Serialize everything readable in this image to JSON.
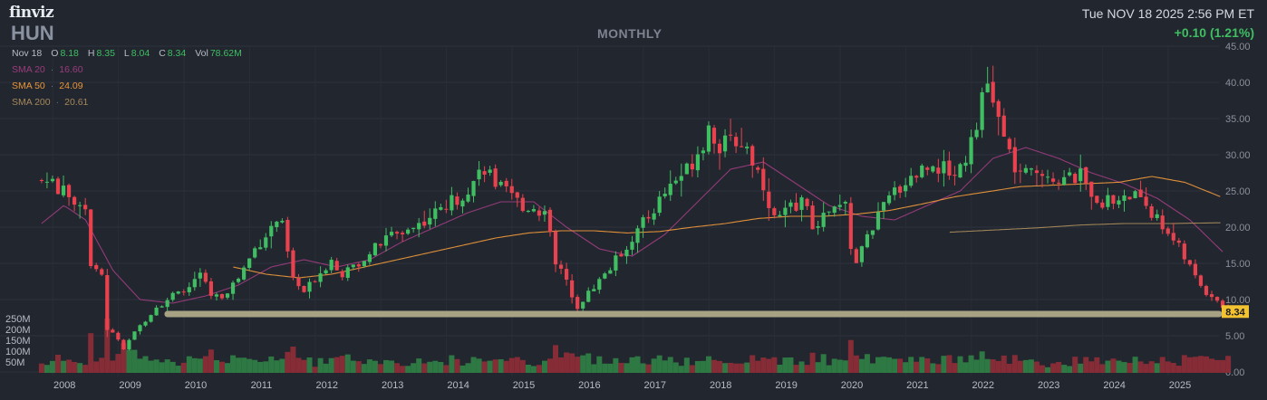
{
  "header": {
    "logo": "finviz",
    "ticker": "HUN",
    "timeframe": "MONTHLY",
    "datetime": "Tue NOV 18 2025 2:56 PM ET",
    "change": "+0.10 (1.21%)"
  },
  "ohlc": {
    "date": "Nov 18",
    "o_label": "O",
    "o": "8.18",
    "h_label": "H",
    "h": "8.35",
    "l_label": "L",
    "l": "8.04",
    "c_label": "C",
    "c": "8.34",
    "vol_label": "Vol",
    "vol": "78.62M"
  },
  "sma": [
    {
      "label": "SMA 20",
      "value": "16.60",
      "color": "#9a3c7d"
    },
    {
      "label": "SMA 50",
      "value": "24.09",
      "color": "#e8953a"
    },
    {
      "label": "SMA 200",
      "value": "20.61",
      "color": "#a4885a"
    }
  ],
  "colors": {
    "up": "#3fbf62",
    "down": "#e8424e",
    "support_line": "#b6b08e",
    "price_tag": "#f2c230"
  },
  "chart_data": {
    "type": "candlestick",
    "interval": "monthly",
    "y_ticks": [
      "45.00",
      "40.00",
      "35.00",
      "30.00",
      "25.00",
      "20.00",
      "15.00",
      "10.00",
      "5.00",
      "0.00"
    ],
    "y_range": [
      0,
      45
    ],
    "x_labels": [
      "2008",
      "2009",
      "2010",
      "2011",
      "2012",
      "2013",
      "2014",
      "2015",
      "2016",
      "2017",
      "2018",
      "2019",
      "2020",
      "2021",
      "2022",
      "2023",
      "2024",
      "2025"
    ],
    "volume_ticks": [
      "250M",
      "200M",
      "150M",
      "100M",
      "50M"
    ],
    "last_price": "8.34",
    "support_level": 8.0,
    "anchors": [
      [
        2007.83,
        26.5
      ],
      [
        2008.0,
        26.0
      ],
      [
        2008.25,
        24.0
      ],
      [
        2008.5,
        23.0
      ],
      [
        2008.58,
        15.0
      ],
      [
        2008.75,
        13.0
      ],
      [
        2008.83,
        6.0
      ],
      [
        2009.0,
        4.5
      ],
      [
        2009.08,
        3.0
      ],
      [
        2009.25,
        5.5
      ],
      [
        2009.58,
        9.0
      ],
      [
        2009.83,
        10.5
      ],
      [
        2010.0,
        11.0
      ],
      [
        2010.25,
        13.5
      ],
      [
        2010.42,
        10.5
      ],
      [
        2010.58,
        10.5
      ],
      [
        2010.83,
        13.0
      ],
      [
        2011.08,
        17.0
      ],
      [
        2011.25,
        19.0
      ],
      [
        2011.42,
        21.0
      ],
      [
        2011.5,
        20.0
      ],
      [
        2011.67,
        12.5
      ],
      [
        2011.83,
        11.0
      ],
      [
        2012.0,
        13.0
      ],
      [
        2012.25,
        15.5
      ],
      [
        2012.42,
        13.5
      ],
      [
        2012.58,
        14.5
      ],
      [
        2012.83,
        16.5
      ],
      [
        2013.17,
        19.0
      ],
      [
        2013.5,
        20.0
      ],
      [
        2013.83,
        22.0
      ],
      [
        2014.17,
        24.0
      ],
      [
        2014.42,
        26.5
      ],
      [
        2014.58,
        28.5
      ],
      [
        2014.75,
        26.0
      ],
      [
        2014.92,
        24.5
      ],
      [
        2015.17,
        23.0
      ],
      [
        2015.5,
        22.0
      ],
      [
        2015.58,
        20.0
      ],
      [
        2015.67,
        15.0
      ],
      [
        2015.83,
        12.5
      ],
      [
        2016.0,
        9.0
      ],
      [
        2016.17,
        11.0
      ],
      [
        2016.5,
        14.5
      ],
      [
        2016.83,
        18.5
      ],
      [
        2017.08,
        21.5
      ],
      [
        2017.42,
        26.0
      ],
      [
        2017.67,
        28.0
      ],
      [
        2017.92,
        32.0
      ],
      [
        2018.0,
        34.0
      ],
      [
        2018.17,
        31.0
      ],
      [
        2018.42,
        32.0
      ],
      [
        2018.58,
        31.0
      ],
      [
        2018.83,
        26.0
      ],
      [
        2019.0,
        21.0
      ],
      [
        2019.17,
        22.0
      ],
      [
        2019.42,
        24.0
      ],
      [
        2019.58,
        20.0
      ],
      [
        2019.83,
        22.0
      ],
      [
        2020.08,
        23.0
      ],
      [
        2020.17,
        17.0
      ],
      [
        2020.25,
        15.0
      ],
      [
        2020.42,
        19.0
      ],
      [
        2020.58,
        21.5
      ],
      [
        2020.83,
        25.0
      ],
      [
        2021.08,
        27.0
      ],
      [
        2021.42,
        29.0
      ],
      [
        2021.58,
        28.0
      ],
      [
        2021.75,
        27.5
      ],
      [
        2021.92,
        30.0
      ],
      [
        2022.08,
        35.0
      ],
      [
        2022.25,
        39.5
      ],
      [
        2022.33,
        37.5
      ],
      [
        2022.5,
        32.0
      ],
      [
        2022.67,
        28.0
      ],
      [
        2022.83,
        27.0
      ],
      [
        2023.08,
        28.0
      ],
      [
        2023.25,
        27.0
      ],
      [
        2023.42,
        26.5
      ],
      [
        2023.67,
        27.0
      ],
      [
        2023.92,
        24.0
      ],
      [
        2024.08,
        23.5
      ],
      [
        2024.33,
        24.0
      ],
      [
        2024.58,
        24.5
      ],
      [
        2024.83,
        21.0
      ],
      [
        2025.0,
        19.5
      ],
      [
        2025.17,
        17.0
      ],
      [
        2025.42,
        13.0
      ],
      [
        2025.58,
        11.0
      ],
      [
        2025.75,
        10.0
      ],
      [
        2025.88,
        8.3
      ]
    ],
    "sma20_anchors": [
      [
        2007.83,
        20.5
      ],
      [
        2008.17,
        23.0
      ],
      [
        2008.5,
        21.0
      ],
      [
        2008.92,
        14.0
      ],
      [
        2009.33,
        10.0
      ],
      [
        2009.83,
        9.5
      ],
      [
        2010.33,
        10.5
      ],
      [
        2010.83,
        12.0
      ],
      [
        2011.33,
        14.5
      ],
      [
        2011.83,
        15.5
      ],
      [
        2012.33,
        14.5
      ],
      [
        2012.83,
        15.5
      ],
      [
        2013.33,
        18.0
      ],
      [
        2013.83,
        20.0
      ],
      [
        2014.33,
        22.0
      ],
      [
        2014.83,
        23.5
      ],
      [
        2015.33,
        23.5
      ],
      [
        2015.83,
        20.0
      ],
      [
        2016.33,
        17.0
      ],
      [
        2016.83,
        16.0
      ],
      [
        2017.33,
        19.0
      ],
      [
        2017.83,
        23.5
      ],
      [
        2018.33,
        28.0
      ],
      [
        2018.83,
        29.0
      ],
      [
        2019.33,
        26.0
      ],
      [
        2019.83,
        23.0
      ],
      [
        2020.33,
        21.5
      ],
      [
        2020.83,
        21.0
      ],
      [
        2021.33,
        23.0
      ],
      [
        2021.83,
        25.0
      ],
      [
        2022.33,
        29.5
      ],
      [
        2022.83,
        31.0
      ],
      [
        2023.33,
        29.5
      ],
      [
        2023.83,
        27.5
      ],
      [
        2024.33,
        26.0
      ],
      [
        2024.83,
        24.0
      ],
      [
        2025.33,
        21.0
      ],
      [
        2025.83,
        16.6
      ]
    ],
    "sma50_anchors": [
      [
        2010.75,
        14.5
      ],
      [
        2011.25,
        13.5
      ],
      [
        2011.75,
        13.0
      ],
      [
        2012.25,
        13.5
      ],
      [
        2012.75,
        14.5
      ],
      [
        2013.25,
        15.5
      ],
      [
        2013.75,
        16.5
      ],
      [
        2014.25,
        17.5
      ],
      [
        2014.75,
        18.5
      ],
      [
        2015.25,
        19.2
      ],
      [
        2015.75,
        19.5
      ],
      [
        2016.25,
        19.5
      ],
      [
        2016.75,
        19.2
      ],
      [
        2017.25,
        19.4
      ],
      [
        2017.75,
        20.0
      ],
      [
        2018.25,
        20.5
      ],
      [
        2018.75,
        21.2
      ],
      [
        2019.25,
        21.5
      ],
      [
        2019.75,
        21.5
      ],
      [
        2020.25,
        21.8
      ],
      [
        2020.75,
        22.3
      ],
      [
        2021.25,
        23.2
      ],
      [
        2021.75,
        24.2
      ],
      [
        2022.25,
        24.9
      ],
      [
        2022.75,
        25.6
      ],
      [
        2023.25,
        25.8
      ],
      [
        2023.75,
        26.0
      ],
      [
        2024.25,
        26.2
      ],
      [
        2024.75,
        27.0
      ],
      [
        2025.25,
        26.2
      ],
      [
        2025.83,
        24.09
      ]
    ],
    "sma200_anchors": [
      [
        2021.67,
        19.3
      ],
      [
        2022.33,
        19.6
      ],
      [
        2023.0,
        19.9
      ],
      [
        2023.67,
        20.3
      ],
      [
        2024.33,
        20.5
      ],
      [
        2025.0,
        20.5
      ],
      [
        2025.83,
        20.61
      ]
    ]
  }
}
